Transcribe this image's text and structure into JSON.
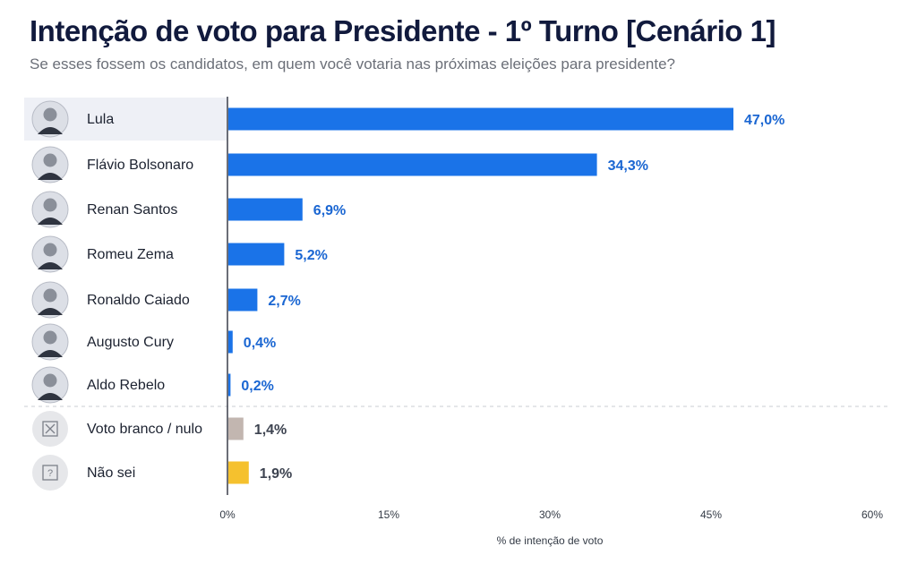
{
  "header": {
    "title": "Intenção de voto para Presidente - 1º Turno [Cenário 1]",
    "subtitle": "Se esses fossem os candidatos, em quem você votaria nas próximas eleições para presidente?"
  },
  "chart_data": {
    "type": "bar",
    "orientation": "horizontal",
    "title": "Intenção de voto para Presidente - 1º Turno [Cenário 1]",
    "subtitle": "Se esses fossem os candidatos, em quem você votaria nas próximas eleições para presidente?",
    "categories": [
      "Lula",
      "Flávio Bolsonaro",
      "Renan Santos",
      "Romeu Zema",
      "Ronaldo Caiado",
      "Augusto Cury",
      "Aldo Rebelo",
      "Voto branco / nulo",
      "Não sei"
    ],
    "values": [
      47.0,
      34.3,
      6.9,
      5.2,
      2.7,
      0.4,
      0.2,
      1.4,
      1.9
    ],
    "value_labels": [
      "47,0%",
      "34,3%",
      "6,9%",
      "5,2%",
      "2,7%",
      "0,4%",
      "0,2%",
      "1,4%",
      "1,9%"
    ],
    "bar_colors": [
      "#1a73e8",
      "#1a73e8",
      "#1a73e8",
      "#1a73e8",
      "#1a73e8",
      "#1a73e8",
      "#1a73e8",
      "#c2b6b0",
      "#f5c12e"
    ],
    "label_colors": [
      "#1a66d2",
      "#1a66d2",
      "#1a66d2",
      "#1a66d2",
      "#1a66d2",
      "#1a66d2",
      "#1a66d2",
      "#3d4350",
      "#3d4350"
    ],
    "icons": [
      "avatar-icon",
      "avatar-icon",
      "avatar-icon",
      "avatar-icon",
      "avatar-icon",
      "avatar-icon",
      "avatar-icon",
      "x-box-icon",
      "question-box-icon"
    ],
    "xlim": [
      0,
      60
    ],
    "xticks": [
      0,
      15,
      30,
      45,
      60
    ],
    "xtick_labels": [
      "0%",
      "15%",
      "30%",
      "45%",
      "60%"
    ],
    "xlabel": "% de intenção de voto",
    "grid": false
  }
}
